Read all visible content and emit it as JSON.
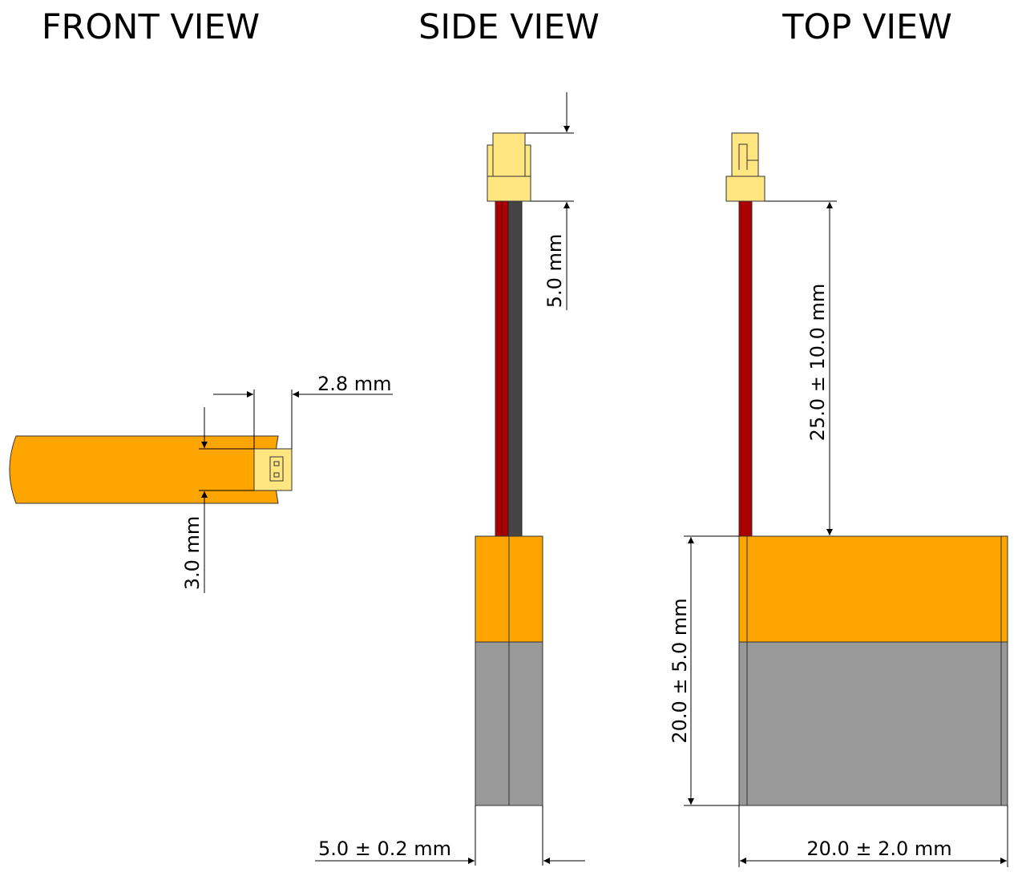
{
  "titles": {
    "front": "FRONT VIEW",
    "side": "SIDE VIEW",
    "top": "TOP VIEW"
  },
  "dimensions": {
    "connector_width": "2.8  mm",
    "connector_height": "3.0  mm",
    "connector_length": "5.0  mm",
    "lead_length": "25.0 ± 10.0  mm",
    "cell_thickness": "5.0 ± 0.2  mm",
    "cell_length": "20.0 ± 5.0  mm",
    "cell_width": "20.0 ± 2.0  mm"
  },
  "colors": {
    "cell_orange": "#FFA500",
    "cell_gray": "#999999",
    "connector_yellow": "#FFE680",
    "wire_red": "#AA0000",
    "wire_black": "#444444"
  }
}
